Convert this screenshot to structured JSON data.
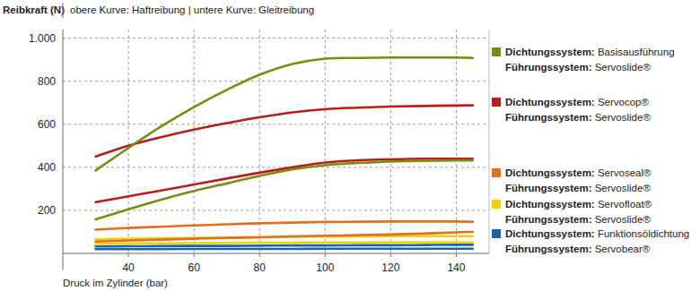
{
  "chart_data": {
    "type": "line",
    "y_label": "Reibkraft (N)",
    "subtitle": "obere Kurve: Haftreibung | untere Kurve: Gleitreibung",
    "x_label": "Druck im Zylinder (bar)",
    "x": [
      30,
      40,
      50,
      60,
      70,
      80,
      90,
      100,
      110,
      120,
      130,
      140,
      145
    ],
    "xlim": [
      20,
      150
    ],
    "xticks": [
      40,
      60,
      80,
      100,
      120,
      140
    ],
    "ylim": [
      0,
      1040
    ],
    "yticks": [
      200,
      400,
      600,
      800,
      {
        "value": 1000,
        "label": "1.000"
      }
    ],
    "grid": true,
    "legend": "right",
    "series": [
      {
        "name": [
          "Dichtungssystem: Basisausführung",
          "Führungssystem: Servoslide®"
        ],
        "color": "#7b8c10",
        "values": [
          385,
          490,
          590,
          680,
          760,
          830,
          880,
          905,
          908,
          910,
          910,
          910,
          908
        ],
        "lower_values": [
          158,
          205,
          250,
          290,
          325,
          360,
          390,
          410,
          420,
          427,
          430,
          432,
          432
        ]
      },
      {
        "name": [
          "Dichtungssystem: Servocop®",
          "Führungssystem: Servoslide®"
        ],
        "color": "#b81c1c",
        "values": [
          450,
          500,
          540,
          575,
          605,
          632,
          655,
          670,
          677,
          682,
          685,
          687,
          688
        ],
        "lower_values": [
          238,
          265,
          292,
          320,
          348,
          375,
          400,
          422,
          432,
          437,
          440,
          440,
          440
        ]
      },
      {
        "name": [
          "Dichtungssystem: Servoseal®",
          "Führungssystem: Servoslide®"
        ],
        "color": "#e07020",
        "values": [
          110,
          118,
          124,
          130,
          135,
          140,
          143,
          146,
          147,
          148,
          148,
          148,
          147
        ],
        "lower_values": [
          55,
          60,
          64,
          68,
          72,
          75,
          79,
          82,
          85,
          88,
          92,
          98,
          100
        ]
      },
      {
        "name": [
          "Dichtungssystem: Servofloat®",
          "Führungssystem: Servoslide®"
        ],
        "color": "#f5d000",
        "values": [
          65,
          68,
          70,
          72,
          74,
          75,
          77,
          78,
          79,
          80,
          80,
          80,
          80
        ],
        "lower_values": [
          45,
          46,
          47,
          48,
          49,
          50,
          50,
          51,
          51,
          52,
          52,
          52,
          52
        ]
      },
      {
        "name": [
          "Dichtungssystem: Funktionsöldichtung",
          "Führungssystem: Servobear®"
        ],
        "color": "#1565b0",
        "values": [
          32,
          33,
          34,
          35,
          35,
          36,
          37,
          37,
          38,
          38,
          39,
          40,
          40
        ],
        "lower_values": [
          20,
          20,
          20,
          21,
          21,
          21,
          21,
          22,
          22,
          22,
          22,
          22,
          22
        ]
      }
    ]
  }
}
